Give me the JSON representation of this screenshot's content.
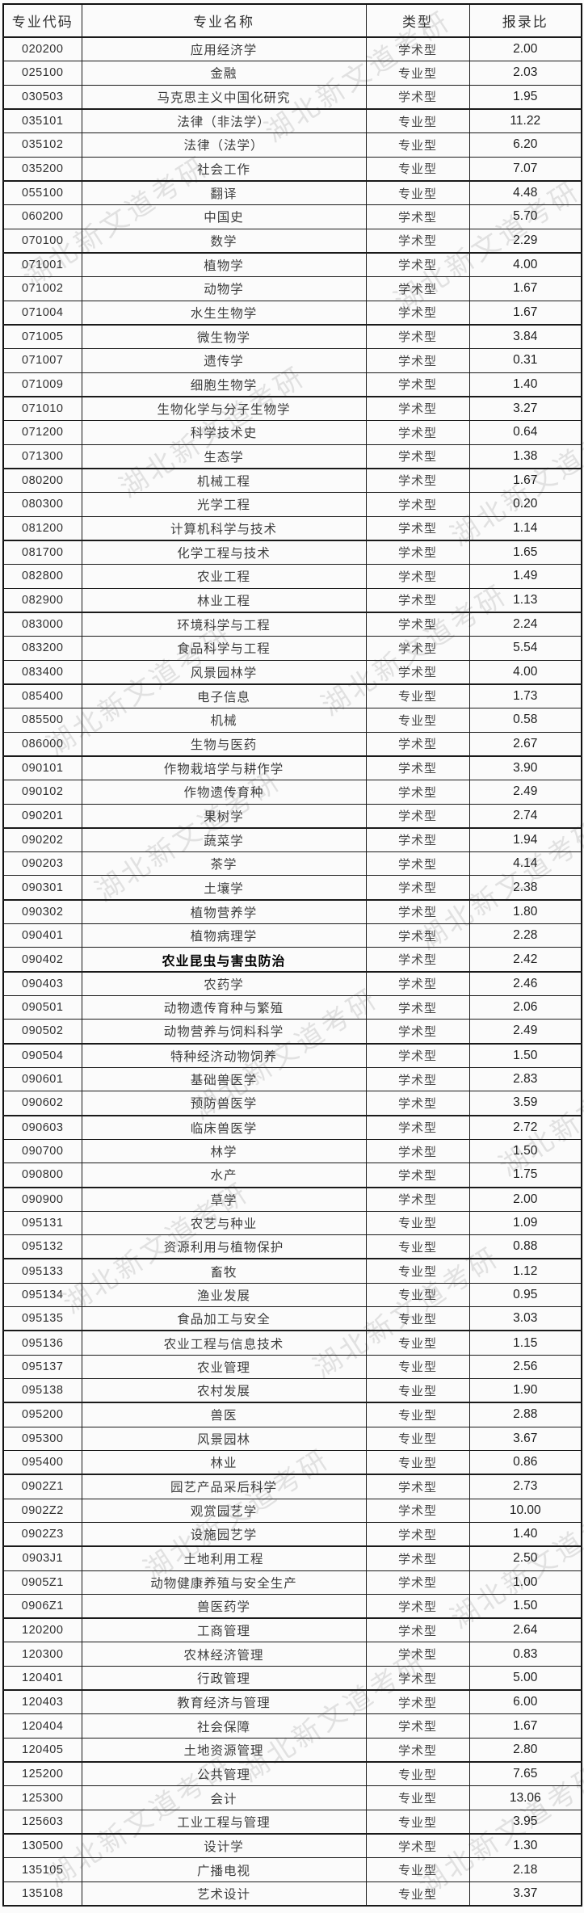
{
  "header": {
    "columns": [
      "专业代码",
      "专业名称",
      "类型",
      "报录比"
    ]
  },
  "table": {
    "highlight_code": "090402",
    "rows": [
      [
        "020200",
        "应用经济学",
        "学术型",
        "2.00"
      ],
      [
        "025100",
        "金融",
        "专业型",
        "2.03"
      ],
      [
        "030503",
        "马克思主义中国化研究",
        "学术型",
        "1.95"
      ],
      [
        "035101",
        "法律（非法学）",
        "专业型",
        "11.22"
      ],
      [
        "035102",
        "法律（法学）",
        "专业型",
        "6.20"
      ],
      [
        "035200",
        "社会工作",
        "专业型",
        "7.07"
      ],
      [
        "055100",
        "翻译",
        "专业型",
        "4.48"
      ],
      [
        "060200",
        "中国史",
        "学术型",
        "5.70"
      ],
      [
        "070100",
        "数学",
        "学术型",
        "2.29"
      ],
      [
        "071001",
        "植物学",
        "学术型",
        "4.00"
      ],
      [
        "071002",
        "动物学",
        "学术型",
        "1.67"
      ],
      [
        "071004",
        "水生生物学",
        "学术型",
        "1.67"
      ],
      [
        "071005",
        "微生物学",
        "学术型",
        "3.84"
      ],
      [
        "071007",
        "遗传学",
        "学术型",
        "0.31"
      ],
      [
        "071009",
        "细胞生物学",
        "学术型",
        "1.40"
      ],
      [
        "071010",
        "生物化学与分子生物学",
        "学术型",
        "3.27"
      ],
      [
        "071200",
        "科学技术史",
        "学术型",
        "0.64"
      ],
      [
        "071300",
        "生态学",
        "学术型",
        "1.38"
      ],
      [
        "080200",
        "机械工程",
        "学术型",
        "1.67"
      ],
      [
        "080300",
        "光学工程",
        "学术型",
        "0.20"
      ],
      [
        "081200",
        "计算机科学与技术",
        "学术型",
        "1.14"
      ],
      [
        "081700",
        "化学工程与技术",
        "学术型",
        "1.65"
      ],
      [
        "082800",
        "农业工程",
        "学术型",
        "1.49"
      ],
      [
        "082900",
        "林业工程",
        "学术型",
        "1.13"
      ],
      [
        "083000",
        "环境科学与工程",
        "学术型",
        "2.24"
      ],
      [
        "083200",
        "食品科学与工程",
        "学术型",
        "5.54"
      ],
      [
        "083400",
        "风景园林学",
        "学术型",
        "4.00"
      ],
      [
        "085400",
        "电子信息",
        "专业型",
        "1.73"
      ],
      [
        "085500",
        "机械",
        "专业型",
        "0.58"
      ],
      [
        "086000",
        "生物与医药",
        "学术型",
        "2.67"
      ],
      [
        "090101",
        "作物栽培学与耕作学",
        "学术型",
        "3.90"
      ],
      [
        "090102",
        "作物遗传育种",
        "学术型",
        "2.49"
      ],
      [
        "090201",
        "果树学",
        "学术型",
        "2.74"
      ],
      [
        "090202",
        "蔬菜学",
        "学术型",
        "1.94"
      ],
      [
        "090203",
        "茶学",
        "学术型",
        "4.14"
      ],
      [
        "090301",
        "土壤学",
        "学术型",
        "2.38"
      ],
      [
        "090302",
        "植物营养学",
        "学术型",
        "1.80"
      ],
      [
        "090401",
        "植物病理学",
        "学术型",
        "2.28"
      ],
      [
        "090402",
        "农业昆虫与害虫防治",
        "学术型",
        "2.42"
      ],
      [
        "090403",
        "农药学",
        "学术型",
        "2.46"
      ],
      [
        "090501",
        "动物遗传育种与繁殖",
        "学术型",
        "2.06"
      ],
      [
        "090502",
        "动物营养与饲料科学",
        "学术型",
        "2.49"
      ],
      [
        "090504",
        "特种经济动物饲养",
        "学术型",
        "1.50"
      ],
      [
        "090601",
        "基础兽医学",
        "学术型",
        "2.83"
      ],
      [
        "090602",
        "预防兽医学",
        "学术型",
        "3.59"
      ],
      [
        "090603",
        "临床兽医学",
        "学术型",
        "2.72"
      ],
      [
        "090700",
        "林学",
        "学术型",
        "1.50"
      ],
      [
        "090800",
        "水产",
        "学术型",
        "1.75"
      ],
      [
        "090900",
        "草学",
        "学术型",
        "2.00"
      ],
      [
        "095131",
        "农艺与种业",
        "专业型",
        "1.09"
      ],
      [
        "095132",
        "资源利用与植物保护",
        "专业型",
        "0.88"
      ],
      [
        "095133",
        "畜牧",
        "专业型",
        "1.12"
      ],
      [
        "095134",
        "渔业发展",
        "专业型",
        "0.95"
      ],
      [
        "095135",
        "食品加工与安全",
        "专业型",
        "3.03"
      ],
      [
        "095136",
        "农业工程与信息技术",
        "专业型",
        "1.15"
      ],
      [
        "095137",
        "农业管理",
        "专业型",
        "2.56"
      ],
      [
        "095138",
        "农村发展",
        "专业型",
        "1.90"
      ],
      [
        "095200",
        "兽医",
        "专业型",
        "2.88"
      ],
      [
        "095300",
        "风景园林",
        "专业型",
        "3.67"
      ],
      [
        "095400",
        "林业",
        "专业型",
        "0.86"
      ],
      [
        "0902Z1",
        "园艺产品采后科学",
        "学术型",
        "2.73"
      ],
      [
        "0902Z2",
        "观赏园艺学",
        "学术型",
        "10.00"
      ],
      [
        "0902Z3",
        "设施园艺学",
        "学术型",
        "1.40"
      ],
      [
        "0903J1",
        "土地利用工程",
        "学术型",
        "2.50"
      ],
      [
        "0905Z1",
        "动物健康养殖与安全生产",
        "学术型",
        "1.00"
      ],
      [
        "0906Z1",
        "兽医药学",
        "学术型",
        "1.50"
      ],
      [
        "120200",
        "工商管理",
        "学术型",
        "2.64"
      ],
      [
        "120300",
        "农林经济管理",
        "学术型",
        "0.83"
      ],
      [
        "120401",
        "行政管理",
        "学术型",
        "5.00"
      ],
      [
        "120403",
        "教育经济与管理",
        "学术型",
        "6.00"
      ],
      [
        "120404",
        "社会保障",
        "学术型",
        "1.67"
      ],
      [
        "120405",
        "土地资源管理",
        "学术型",
        "2.80"
      ],
      [
        "125200",
        "公共管理",
        "专业型",
        "7.65"
      ],
      [
        "125300",
        "会计",
        "专业型",
        "13.06"
      ],
      [
        "125603",
        "工业工程与管理",
        "专业型",
        "3.95"
      ],
      [
        "130500",
        "设计学",
        "学术型",
        "1.30"
      ],
      [
        "135105",
        "广播电视",
        "专业型",
        "2.18"
      ],
      [
        "135108",
        "艺术设计",
        "专业型",
        "3.37"
      ]
    ]
  },
  "watermark": {
    "text": "湖北新文道考研"
  }
}
